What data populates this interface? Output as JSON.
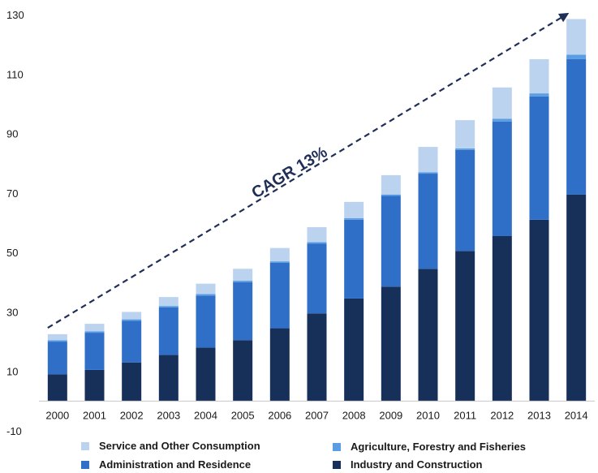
{
  "chart_data": {
    "type": "bar",
    "stacked": true,
    "title": "",
    "xlabel": "",
    "ylabel": "",
    "categories": [
      "2000",
      "2001",
      "2002",
      "2003",
      "2004",
      "2005",
      "2006",
      "2007",
      "2008",
      "2009",
      "2010",
      "2011",
      "2012",
      "2013",
      "2014"
    ],
    "ylim": [
      -10,
      130
    ],
    "yticks": [
      "130",
      "110",
      "90",
      "70",
      "50",
      "30",
      "10",
      "-10"
    ],
    "ytick_values": [
      130,
      110,
      90,
      70,
      50,
      30,
      10,
      -10
    ],
    "grid": false,
    "legend_position": "bottom",
    "series": [
      {
        "name": "Industry and Construction",
        "color": "#17305a",
        "values": [
          9,
          10.5,
          13,
          15.5,
          18,
          20.5,
          24.5,
          29.5,
          34.5,
          38.5,
          44.5,
          50.5,
          55.5,
          61,
          69.5
        ]
      },
      {
        "name": "Administration and Residence",
        "color": "#2f6fc8",
        "values": [
          11,
          12.5,
          14,
          16,
          17.5,
          19.5,
          22,
          23.5,
          26.5,
          30.5,
          32,
          34,
          38.5,
          41.5,
          45.5
        ]
      },
      {
        "name": "Agriculture, Forestry and Fisheries",
        "color": "#5b9de3",
        "values": [
          0.5,
          0.5,
          0.5,
          0.5,
          0.5,
          0.5,
          0.5,
          0.5,
          0.5,
          0.5,
          0.5,
          0.5,
          1,
          1,
          1.5
        ]
      },
      {
        "name": "Service and Other Consumption",
        "color": "#bcd3f0",
        "values": [
          2,
          2.5,
          2.5,
          3,
          3.5,
          4,
          4.5,
          5,
          5.5,
          6.5,
          8.5,
          9.5,
          10.5,
          11.5,
          12
        ]
      }
    ],
    "annotation": {
      "text": "CAGR 13%",
      "arrow_from": [
        "2000",
        23
      ],
      "arrow_to": [
        "2014",
        130
      ]
    }
  },
  "legend": [
    {
      "label": "Service and Other Consumption",
      "color": "#bcd3f0"
    },
    {
      "label": "Agriculture, Forestry and Fisheries",
      "color": "#5b9de3"
    },
    {
      "label": "Administration and Residence",
      "color": "#2f6fc8"
    },
    {
      "label": "Industry and Construction",
      "color": "#17305a"
    }
  ]
}
